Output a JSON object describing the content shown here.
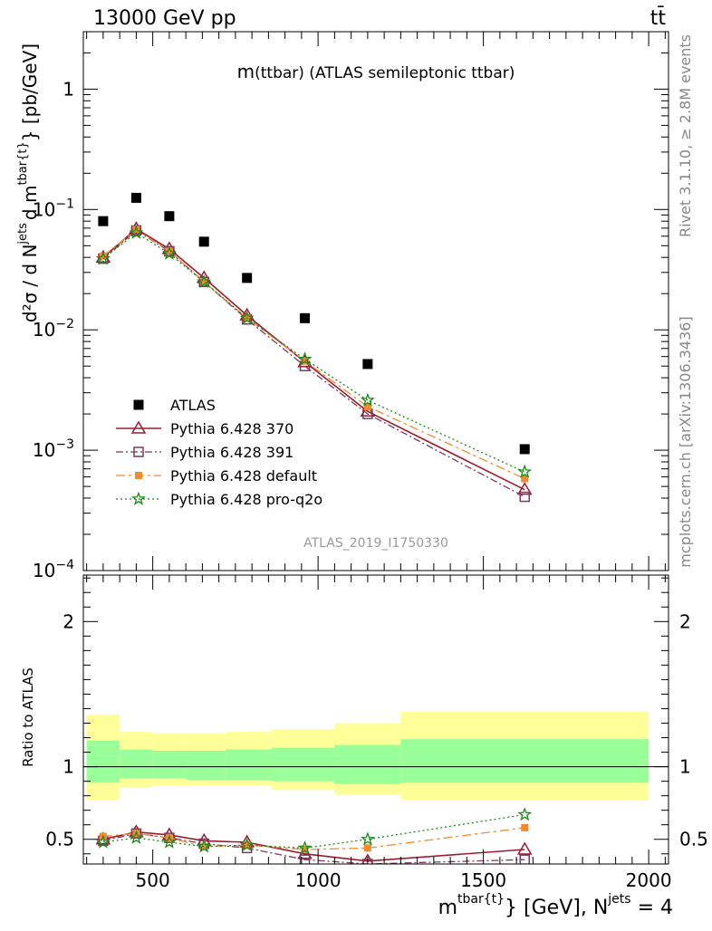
{
  "header": {
    "energy_label": "13000 GeV pp",
    "process_label": "tt̄",
    "rivet_label": "Rivet 3.1.10, ≥ 2.8M events",
    "mcplots_label": "mcplots.cern.ch [arXiv:1306.3436]"
  },
  "chart_data": [
    {
      "type": "scatter",
      "title": "m(ttbar) (ATLAS semileptonic ttbar)",
      "title_main": "m",
      "title_sub": "(ttbar) (ATLAS semileptonic ttbar)",
      "analysis_label": "ATLAS_2019_I1750330",
      "ylabel_parts": {
        "d2sigma": "d²σ",
        "slash_d": "/  d N",
        "jets_sup": "jets",
        "d_m": "d m",
        "tbar_sup": "tbar{t}",
        "unit": "} [pb/GeV]"
      },
      "yscale": "log",
      "ylim": [
        0.0001,
        3
      ],
      "xlim": [
        290,
        2060
      ],
      "y_ticks": [
        {
          "value": 1,
          "base": "1",
          "exp": ""
        },
        {
          "value": 0.1,
          "base": "10",
          "exp": "−1"
        },
        {
          "value": 0.01,
          "base": "10",
          "exp": "−2"
        },
        {
          "value": 0.001,
          "base": "10",
          "exp": "−3"
        },
        {
          "value": 0.0001,
          "base": "10",
          "exp": "−4"
        }
      ],
      "legend_position": "lower-left",
      "x": [
        350,
        450,
        550,
        655,
        785,
        960,
        1150,
        1625
      ],
      "series": [
        {
          "name": "ATLAS",
          "marker": "square-filled",
          "color": "#000000",
          "values": [
            0.08,
            0.125,
            0.088,
            0.054,
            0.027,
            0.0125,
            0.0052,
            0.00102
          ]
        },
        {
          "name": "Pythia 6.428 370",
          "marker": "triangle-open",
          "color": "#9b1b30",
          "line": "solid",
          "values": [
            0.04,
            0.069,
            0.047,
            0.027,
            0.0132,
            0.0054,
            0.0021,
            0.00047
          ]
        },
        {
          "name": "Pythia 6.428 391",
          "marker": "square-open",
          "color": "#7a3b5e",
          "line": "dashdot",
          "values": [
            0.039,
            0.067,
            0.045,
            0.025,
            0.0122,
            0.005,
            0.002,
            0.00041
          ]
        },
        {
          "name": "Pythia 6.428 default",
          "marker": "square-filled",
          "color": "#f28a30",
          "line": "dashdot-long",
          "values": [
            0.041,
            0.068,
            0.045,
            0.025,
            0.0125,
            0.0055,
            0.0023,
            0.00058
          ]
        },
        {
          "name": "Pythia 6.428 pro-q2o",
          "marker": "star-open",
          "color": "#1a8a1a",
          "line": "dotted",
          "values": [
            0.039,
            0.064,
            0.043,
            0.025,
            0.0125,
            0.0057,
            0.0026,
            0.00066
          ]
        }
      ]
    },
    {
      "type": "scatter",
      "ylabel": "Ratio to ATLAS",
      "xlabel_parts": {
        "m": "m",
        "sup": "tbar{t}",
        "rest": "} [GeV], N",
        "jets_sup": "jets",
        "eq": " = 4"
      },
      "ylim": [
        0.33,
        2.32
      ],
      "xlim": [
        290,
        2060
      ],
      "x_ticks": [
        "500",
        "1000",
        "1500",
        "2000"
      ],
      "x_tick_values": [
        500,
        1000,
        1500,
        2000
      ],
      "y_ticks": [
        "0.5",
        "1",
        "2"
      ],
      "y_tick_values": [
        0.5,
        1,
        2
      ],
      "bands": [
        {
          "x_low": 300,
          "x_high": 400,
          "inner": [
            0.89,
            1.18
          ],
          "outer": [
            0.77,
            1.36
          ]
        },
        {
          "x_low": 400,
          "x_high": 500,
          "inner": [
            0.92,
            1.12
          ],
          "outer": [
            0.86,
            1.24
          ]
        },
        {
          "x_low": 500,
          "x_high": 600,
          "inner": [
            0.92,
            1.11
          ],
          "outer": [
            0.87,
            1.23
          ]
        },
        {
          "x_low": 600,
          "x_high": 720,
          "inner": [
            0.91,
            1.11
          ],
          "outer": [
            0.87,
            1.23
          ]
        },
        {
          "x_low": 720,
          "x_high": 860,
          "inner": [
            0.91,
            1.12
          ],
          "outer": [
            0.87,
            1.24
          ]
        },
        {
          "x_low": 860,
          "x_high": 1050,
          "inner": [
            0.9,
            1.13
          ],
          "outer": [
            0.84,
            1.26
          ]
        },
        {
          "x_low": 1050,
          "x_high": 1250,
          "inner": [
            0.88,
            1.15
          ],
          "outer": [
            0.81,
            1.3
          ]
        },
        {
          "x_low": 1250,
          "x_high": 2000,
          "inner": [
            0.89,
            1.19
          ],
          "outer": [
            0.77,
            1.38
          ]
        }
      ],
      "x": [
        350,
        450,
        550,
        655,
        785,
        960,
        1150,
        1625
      ],
      "series": [
        {
          "name": "Pythia 6.428 370",
          "values": [
            0.5,
            0.55,
            0.53,
            0.49,
            0.48,
            0.4,
            0.35,
            0.43
          ]
        },
        {
          "name": "Pythia 6.428 391",
          "values": [
            0.49,
            0.54,
            0.51,
            0.47,
            0.44,
            0.36,
            0.33,
            0.36
          ]
        },
        {
          "name": "Pythia 6.428 default",
          "values": [
            0.52,
            0.54,
            0.51,
            0.45,
            0.46,
            0.43,
            0.44,
            0.58
          ]
        },
        {
          "name": "Pythia 6.428 pro-q2o",
          "values": [
            0.48,
            0.51,
            0.48,
            0.45,
            0.46,
            0.44,
            0.5,
            0.67
          ]
        }
      ]
    }
  ]
}
